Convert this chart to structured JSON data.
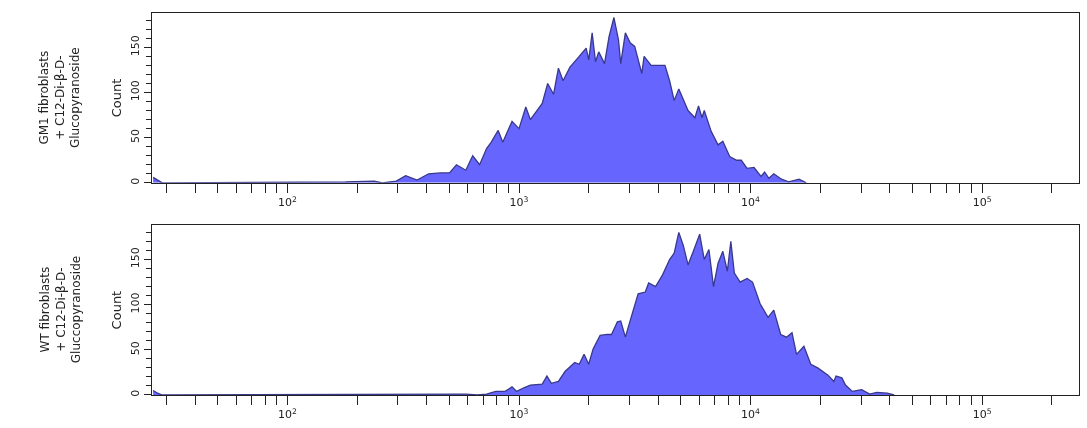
{
  "chart_data": [
    {
      "type": "area",
      "ylabel": "Count",
      "annotations": [
        "GM1 fibroblasts\n+ C12-Di-β-D-\nGlucopyranoside"
      ],
      "log": "x",
      "xlim": [
        26,
        262144
      ],
      "ylim": [
        0,
        188
      ],
      "tick_labels": "xy",
      "xticks": [
        {
          "value": 30,
          "label": null
        },
        {
          "value": 40,
          "label": null
        },
        {
          "value": 50,
          "label": null
        },
        {
          "value": 60,
          "label": null
        },
        {
          "value": 70,
          "label": null
        },
        {
          "value": 80,
          "label": null
        },
        {
          "value": 90,
          "label": null
        },
        {
          "value": 100,
          "label": "10$^{2}$"
        },
        {
          "value": 200,
          "label": null
        },
        {
          "value": 300,
          "label": null
        },
        {
          "value": 400,
          "label": null
        },
        {
          "value": 500,
          "label": null
        },
        {
          "value": 600,
          "label": null
        },
        {
          "value": 700,
          "label": null
        },
        {
          "value": 800,
          "label": null
        },
        {
          "value": 900,
          "label": null
        },
        {
          "value": 1000,
          "label": "10$^{3}$"
        },
        {
          "value": 2000,
          "label": null
        },
        {
          "value": 3000,
          "label": null
        },
        {
          "value": 4000,
          "label": null
        },
        {
          "value": 5000,
          "label": null
        },
        {
          "value": 6000,
          "label": null
        },
        {
          "value": 7000,
          "label": null
        },
        {
          "value": 8000,
          "label": null
        },
        {
          "value": 9000,
          "label": null
        },
        {
          "value": 10000,
          "label": "10$^{4}$"
        },
        {
          "value": 20000,
          "label": null
        },
        {
          "value": 30000,
          "label": null
        },
        {
          "value": 40000,
          "label": null
        },
        {
          "value": 50000,
          "label": null
        },
        {
          "value": 60000,
          "label": null
        },
        {
          "value": 70000,
          "label": null
        },
        {
          "value": 80000,
          "label": null
        },
        {
          "value": 90000,
          "label": null
        },
        {
          "value": 100000,
          "label": "10$^{5}$"
        },
        {
          "value": 200000,
          "label": null
        }
      ],
      "yticks": [
        0,
        {
          "value": 10,
          "label": null
        },
        {
          "value": 20,
          "label": null
        },
        {
          "value": 30,
          "label": null
        },
        {
          "value": 40,
          "label": null
        },
        50,
        {
          "value": 60,
          "label": null
        },
        {
          "value": 70,
          "label": null
        },
        {
          "value": 80,
          "label": null
        },
        {
          "value": 90,
          "label": null
        },
        100,
        {
          "value": 110,
          "label": null
        },
        {
          "value": 120,
          "label": null
        },
        {
          "value": 130,
          "label": null
        },
        {
          "value": 140,
          "label": null
        },
        150,
        {
          "value": 160,
          "label": null
        },
        {
          "value": 170,
          "label": null
        },
        {
          "value": 180,
          "label": null
        }
      ],
      "series": [
        {
          "color": "#6666ff",
          "x": [
            26.3,
            27.5,
            28.8,
            178,
            237,
            257,
            295,
            324,
            363,
            407,
            457,
            501,
            537,
            589,
            631,
            676,
            724,
            759,
            813,
            851,
            933,
            1000,
            1070,
            1120,
            1260,
            1330,
            1410,
            1480,
            1550,
            1660,
            1820,
            1950,
            2000,
            2070,
            2140,
            2210,
            2340,
            2450,
            2570,
            2690,
            2750,
            2880,
            3020,
            3160,
            3390,
            3470,
            3720,
            3980,
            4270,
            4470,
            4680,
            4900,
            5370,
            5750,
            5960,
            6170,
            6310,
            6760,
            7240,
            7590,
            8130,
            8710,
            9120,
            9660,
            10350,
            11100,
            11500,
            12000,
            12600,
            13600,
            14600,
            16200,
            17400
          ],
          "values": [
            6,
            3,
            0,
            1,
            2,
            0,
            2,
            8,
            3,
            10,
            11,
            11,
            20,
            14,
            30,
            20,
            38,
            45,
            58,
            45,
            68,
            60,
            84,
            70,
            88,
            110,
            98,
            127,
            113,
            128,
            140,
            149,
            136,
            166,
            134,
            145,
            132,
            162,
            183,
            158,
            132,
            166,
            155,
            151,
            121,
            140,
            130,
            130,
            130,
            113,
            91,
            104,
            80,
            72,
            85,
            72,
            80,
            57,
            42,
            46,
            29,
            25,
            25,
            16,
            17,
            7,
            12,
            5,
            10,
            4,
            1,
            4,
            0
          ]
        }
      ]
    },
    {
      "type": "area",
      "ylabel": "Count",
      "annotations": [
        "WT fibroblasts\n+ C12-Di-β-D-\nGluccopyranoside"
      ],
      "log": "x",
      "xlim": [
        26,
        262144
      ],
      "ylim": [
        0,
        188
      ],
      "tick_labels": "xy",
      "xticks": [
        {
          "value": 30,
          "label": null
        },
        {
          "value": 40,
          "label": null
        },
        {
          "value": 50,
          "label": null
        },
        {
          "value": 60,
          "label": null
        },
        {
          "value": 70,
          "label": null
        },
        {
          "value": 80,
          "label": null
        },
        {
          "value": 90,
          "label": null
        },
        {
          "value": 100,
          "label": "10$^{2}$"
        },
        {
          "value": 200,
          "label": null
        },
        {
          "value": 300,
          "label": null
        },
        {
          "value": 400,
          "label": null
        },
        {
          "value": 500,
          "label": null
        },
        {
          "value": 600,
          "label": null
        },
        {
          "value": 700,
          "label": null
        },
        {
          "value": 800,
          "label": null
        },
        {
          "value": 900,
          "label": null
        },
        {
          "value": 1000,
          "label": "10$^{3}$"
        },
        {
          "value": 2000,
          "label": null
        },
        {
          "value": 3000,
          "label": null
        },
        {
          "value": 4000,
          "label": null
        },
        {
          "value": 5000,
          "label": null
        },
        {
          "value": 6000,
          "label": null
        },
        {
          "value": 7000,
          "label": null
        },
        {
          "value": 8000,
          "label": null
        },
        {
          "value": 9000,
          "label": null
        },
        {
          "value": 10000,
          "label": "10$^{4}$"
        },
        {
          "value": 20000,
          "label": null
        },
        {
          "value": 30000,
          "label": null
        },
        {
          "value": 40000,
          "label": null
        },
        {
          "value": 50000,
          "label": null
        },
        {
          "value": 60000,
          "label": null
        },
        {
          "value": 70000,
          "label": null
        },
        {
          "value": 80000,
          "label": null
        },
        {
          "value": 90000,
          "label": null
        },
        {
          "value": 100000,
          "label": "10$^{5}$"
        },
        {
          "value": 200000,
          "label": null
        }
      ],
      "yticks": [
        0,
        {
          "value": 10,
          "label": null
        },
        {
          "value": 20,
          "label": null
        },
        {
          "value": 30,
          "label": null
        },
        {
          "value": 40,
          "label": null
        },
        50,
        {
          "value": 60,
          "label": null
        },
        {
          "value": 70,
          "label": null
        },
        {
          "value": 80,
          "label": null
        },
        {
          "value": 90,
          "label": null
        },
        100,
        {
          "value": 110,
          "label": null
        },
        {
          "value": 120,
          "label": null
        },
        {
          "value": 130,
          "label": null
        },
        {
          "value": 140,
          "label": null
        },
        150,
        {
          "value": 160,
          "label": null
        },
        {
          "value": 170,
          "label": null
        },
        {
          "value": 180,
          "label": null
        }
      ],
      "series": [
        {
          "color": "#6666ff",
          "x": [
            26.3,
            27.5,
            28.8,
            537,
            589,
            661,
            724,
            794,
            871,
            933,
            977,
            1050,
            1120,
            1260,
            1320,
            1380,
            1480,
            1580,
            1740,
            1820,
            1910,
            2000,
            2090,
            2240,
            2400,
            2510,
            2660,
            2750,
            2880,
            3050,
            3270,
            3510,
            3630,
            3890,
            4170,
            4470,
            4680,
            4900,
            5130,
            5370,
            5620,
            6030,
            6310,
            6610,
            6920,
            7240,
            7590,
            7940,
            8220,
            8510,
            9020,
            9660,
            10200,
            11000,
            11900,
            12600,
            13500,
            14300,
            15100,
            15800,
            17000,
            18200,
            19500,
            21600,
            22900,
            23400,
            24800,
            25700,
            27500,
            30200,
            32700,
            35100,
            38900,
            41700
          ],
          "values": [
            5,
            2,
            0,
            1,
            1,
            0,
            1,
            4,
            4,
            9,
            4,
            8,
            11,
            12,
            21,
            13,
            15,
            26,
            36,
            34,
            45,
            34,
            51,
            66,
            67,
            67,
            81,
            82,
            64,
            86,
            112,
            114,
            124,
            120,
            133,
            150,
            157,
            180,
            165,
            144,
            157,
            178,
            150,
            161,
            120,
            146,
            159,
            137,
            170,
            135,
            125,
            129,
            125,
            101,
            86,
            94,
            67,
            64,
            69,
            45,
            54,
            34,
            30,
            22,
            15,
            21,
            19,
            11,
            4,
            6,
            1,
            3,
            2,
            0
          ]
        }
      ]
    }
  ]
}
